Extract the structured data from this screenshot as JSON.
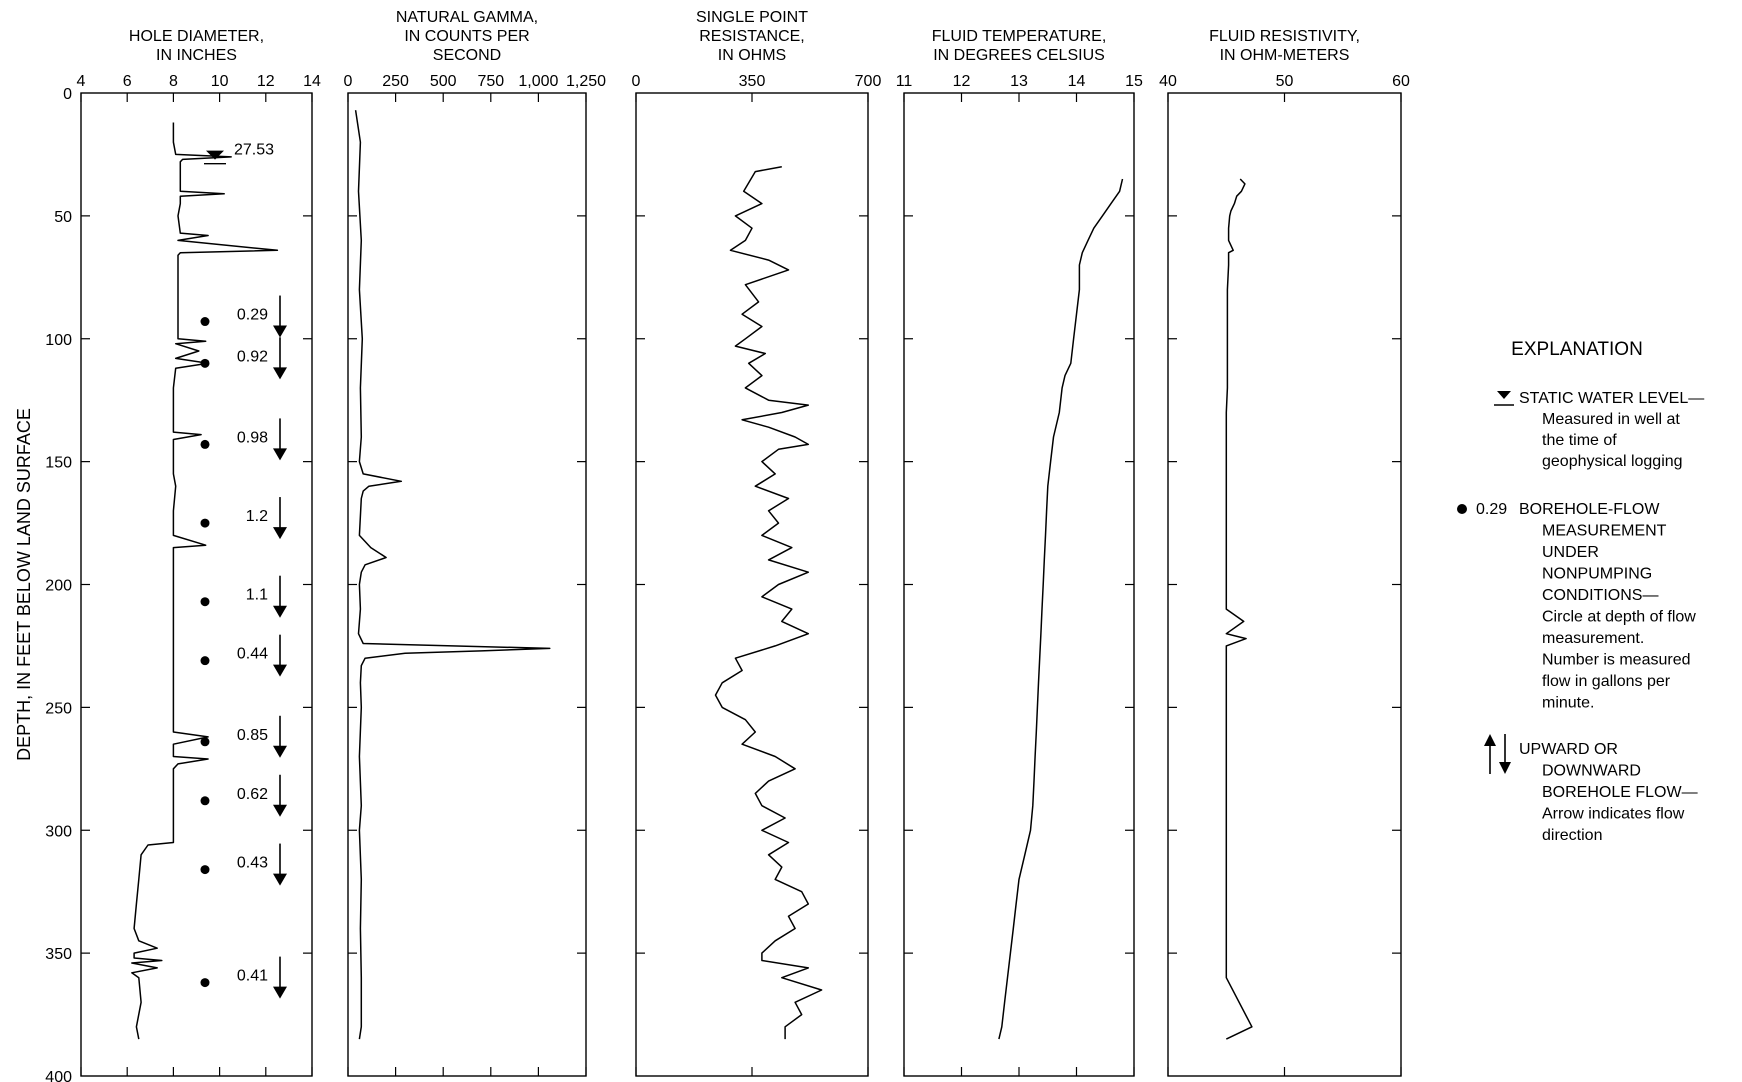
{
  "y_axis": {
    "label": "DEPTH, IN FEET BELOW LAND SURFACE",
    "ticks": [
      "0",
      "50",
      "100",
      "150",
      "200",
      "250",
      "300",
      "350",
      "400"
    ],
    "range": [
      0,
      400
    ]
  },
  "chart_data": [
    {
      "type": "line",
      "title_lines": [
        "HOLE DIAMETER,",
        "IN INCHES"
      ],
      "x_ticks": [
        "4",
        "6",
        "8",
        "10",
        "12",
        "14"
      ],
      "xlim": [
        4,
        14
      ],
      "x_tick_values": [
        4,
        6,
        8,
        10,
        12,
        14
      ],
      "series": [
        {
          "depth": [
            12,
            14,
            20,
            25,
            26,
            27,
            28,
            30,
            40,
            41,
            42,
            45,
            50,
            57,
            58,
            60,
            64,
            65,
            66,
            70,
            80,
            90,
            100,
            101,
            102,
            105,
            108,
            110,
            112,
            120,
            130,
            138,
            139,
            141,
            150,
            155,
            160,
            170,
            180,
            184,
            185,
            190,
            200,
            210,
            220,
            230,
            240,
            246,
            250,
            260,
            262,
            265,
            270,
            271,
            273,
            275,
            280,
            290,
            300,
            305,
            306,
            310,
            320,
            330,
            340,
            345,
            348,
            350,
            352,
            353,
            354,
            356,
            358,
            360,
            370,
            380,
            385
          ],
          "diameter": [
            8,
            8,
            8,
            8.1,
            10.5,
            8.4,
            8.3,
            8.3,
            8.3,
            10.2,
            8.3,
            8.3,
            8.2,
            8.3,
            9.5,
            8.2,
            12.5,
            8.3,
            8.2,
            8.2,
            8.2,
            8.2,
            8.2,
            9.4,
            8.1,
            9.1,
            8.1,
            9.5,
            8.1,
            8,
            8,
            8,
            9.2,
            8,
            8,
            8,
            8.1,
            8,
            8,
            9.4,
            8,
            8,
            8,
            8,
            8,
            8,
            8,
            8,
            8,
            8,
            9.5,
            8,
            8,
            9.5,
            8.2,
            8,
            8,
            8,
            8,
            8,
            6.9,
            6.6,
            6.5,
            6.4,
            6.3,
            6.5,
            7.3,
            6.3,
            6.3,
            7.5,
            6.2,
            7.3,
            6.2,
            6.5,
            6.6,
            6.4,
            6.5
          ]
        }
      ],
      "water_level": {
        "depth": 27.53,
        "label": "27.53"
      },
      "flow_measurements": [
        {
          "depth": 93,
          "label": "0.29",
          "direction": "down"
        },
        {
          "depth": 110,
          "label": "0.92",
          "direction": "down"
        },
        {
          "depth": 143,
          "label": "0.98",
          "direction": "down"
        },
        {
          "depth": 175,
          "label": "1.2",
          "direction": "down"
        },
        {
          "depth": 207,
          "label": "1.1",
          "direction": "down"
        },
        {
          "depth": 231,
          "label": "0.44",
          "direction": "down"
        },
        {
          "depth": 264,
          "label": "0.85",
          "direction": "down"
        },
        {
          "depth": 288,
          "label": "0.62",
          "direction": "down"
        },
        {
          "depth": 316,
          "label": "0.43",
          "direction": "down"
        },
        {
          "depth": 362,
          "label": "0.41",
          "direction": "down"
        }
      ]
    },
    {
      "type": "line",
      "title_lines": [
        "NATURAL GAMMA,",
        "IN COUNTS PER",
        "SECOND"
      ],
      "x_ticks": [
        "0",
        "250",
        "500",
        "750",
        "1,000",
        "1,250"
      ],
      "xlim": [
        0,
        1250
      ],
      "x_tick_values": [
        0,
        250,
        500,
        750,
        1000,
        1250
      ],
      "series": [
        {
          "depth": [
            7,
            20,
            40,
            60,
            80,
            100,
            120,
            140,
            150,
            155,
            158,
            160,
            162,
            165,
            180,
            185,
            189,
            192,
            195,
            200,
            210,
            220,
            224,
            226,
            227,
            228,
            230,
            233,
            240,
            250,
            270,
            290,
            300,
            320,
            340,
            360,
            380,
            385
          ],
          "gamma": [
            40,
            65,
            55,
            70,
            60,
            75,
            65,
            70,
            60,
            80,
            280,
            110,
            80,
            70,
            60,
            120,
            200,
            90,
            70,
            60,
            65,
            55,
            80,
            1060,
            700,
            300,
            90,
            70,
            65,
            70,
            60,
            70,
            60,
            70,
            65,
            70,
            70,
            60
          ]
        }
      ]
    },
    {
      "type": "line",
      "title_lines": [
        "SINGLE POINT",
        "RESISTANCE,",
        "IN OHMS"
      ],
      "x_ticks": [
        "0",
        "350",
        "700"
      ],
      "xlim": [
        0,
        700
      ],
      "x_tick_values": [
        0,
        350,
        700
      ],
      "series": [
        {
          "depth": [
            30,
            32,
            40,
            45,
            50,
            55,
            60,
            64,
            68,
            72,
            78,
            85,
            90,
            95,
            100,
            103,
            106,
            110,
            115,
            120,
            125,
            127,
            130,
            133,
            136,
            140,
            143,
            145,
            150,
            155,
            160,
            165,
            170,
            175,
            180,
            185,
            190,
            195,
            200,
            205,
            210,
            215,
            220,
            225,
            230,
            235,
            240,
            245,
            250,
            255,
            260,
            265,
            270,
            275,
            280,
            285,
            290,
            295,
            300,
            305,
            310,
            315,
            320,
            325,
            330,
            335,
            340,
            345,
            350,
            353,
            356,
            360,
            365,
            370,
            375,
            380,
            385
          ],
          "resistance": [
            440,
            360,
            325,
            380,
            300,
            350,
            330,
            285,
            400,
            460,
            330,
            370,
            320,
            380,
            330,
            300,
            390,
            340,
            380,
            330,
            400,
            520,
            440,
            320,
            400,
            480,
            520,
            430,
            380,
            420,
            360,
            460,
            400,
            430,
            380,
            470,
            400,
            520,
            430,
            380,
            470,
            440,
            520,
            420,
            300,
            320,
            260,
            240,
            260,
            330,
            360,
            320,
            420,
            480,
            400,
            360,
            380,
            450,
            380,
            460,
            400,
            440,
            420,
            500,
            520,
            460,
            480,
            420,
            380,
            380,
            520,
            440,
            560,
            480,
            500,
            450,
            450
          ]
        }
      ]
    },
    {
      "type": "line",
      "title_lines": [
        "FLUID TEMPERATURE,",
        "IN DEGREES CELSIUS"
      ],
      "x_ticks": [
        "11",
        "12",
        "13",
        "14",
        "15"
      ],
      "xlim": [
        11,
        15
      ],
      "x_tick_values": [
        11,
        12,
        13,
        14,
        15
      ],
      "series": [
        {
          "depth": [
            35,
            40,
            45,
            50,
            55,
            60,
            65,
            70,
            80,
            90,
            100,
            110,
            115,
            120,
            130,
            140,
            150,
            160,
            170,
            180,
            190,
            200,
            210,
            220,
            230,
            240,
            250,
            260,
            270,
            280,
            290,
            300,
            310,
            320,
            330,
            340,
            350,
            360,
            370,
            380,
            385
          ],
          "temperature": [
            14.8,
            14.75,
            14.6,
            14.45,
            14.3,
            14.2,
            14.1,
            14.05,
            14.05,
            14.0,
            13.95,
            13.9,
            13.8,
            13.75,
            13.7,
            13.6,
            13.55,
            13.5,
            13.48,
            13.46,
            13.44,
            13.42,
            13.4,
            13.38,
            13.36,
            13.34,
            13.32,
            13.3,
            13.28,
            13.26,
            13.24,
            13.2,
            13.1,
            13.0,
            12.95,
            12.9,
            12.85,
            12.8,
            12.75,
            12.7,
            12.65
          ]
        }
      ]
    },
    {
      "type": "line",
      "title_lines": [
        "FLUID RESISTIVITY,",
        "IN OHM-METERS"
      ],
      "x_ticks": [
        "40",
        "50",
        "60"
      ],
      "xlim": [
        40,
        60
      ],
      "x_tick_values": [
        40,
        50,
        60
      ],
      "series": [
        {
          "depth": [
            35,
            37,
            40,
            42,
            45,
            48,
            50,
            55,
            60,
            64,
            65,
            70,
            80,
            90,
            100,
            110,
            120,
            130,
            140,
            150,
            160,
            170,
            180,
            190,
            200,
            210,
            215,
            220,
            222,
            225,
            240,
            260,
            280,
            300,
            320,
            340,
            360,
            380,
            385
          ],
          "resistivity": [
            46.2,
            46.6,
            46.3,
            45.9,
            45.7,
            45.4,
            45.3,
            45.2,
            45.2,
            45.6,
            45.2,
            45.2,
            45.1,
            45.1,
            45.1,
            45.1,
            45.1,
            45.0,
            45.0,
            45.0,
            45.0,
            45.0,
            45.0,
            45.0,
            45.0,
            45.0,
            46.5,
            45.0,
            46.7,
            45.0,
            45.0,
            45.0,
            45.0,
            45.0,
            45.0,
            45.0,
            45.0,
            47.2,
            45.0
          ]
        }
      ]
    }
  ],
  "legend": {
    "title": "EXPLANATION",
    "items": [
      {
        "symbol": "water-level",
        "lines": [
          "STATIC WATER LEVEL—",
          "Measured in well at",
          "the time of",
          "geophysical logging"
        ]
      },
      {
        "symbol": "flow-dot",
        "prefix": "0.29",
        "lines": [
          "BOREHOLE-FLOW",
          "MEASUREMENT",
          "UNDER",
          "NONPUMPING",
          "CONDITIONS—",
          "Circle at depth of flow",
          "measurement.",
          "Number is measured",
          "flow in gallons per",
          "minute."
        ]
      },
      {
        "symbol": "flow-arrows",
        "lines": [
          "UPWARD OR",
          "DOWNWARD",
          "BOREHOLE FLOW—",
          "Arrow indicates flow",
          "direction"
        ]
      }
    ]
  }
}
